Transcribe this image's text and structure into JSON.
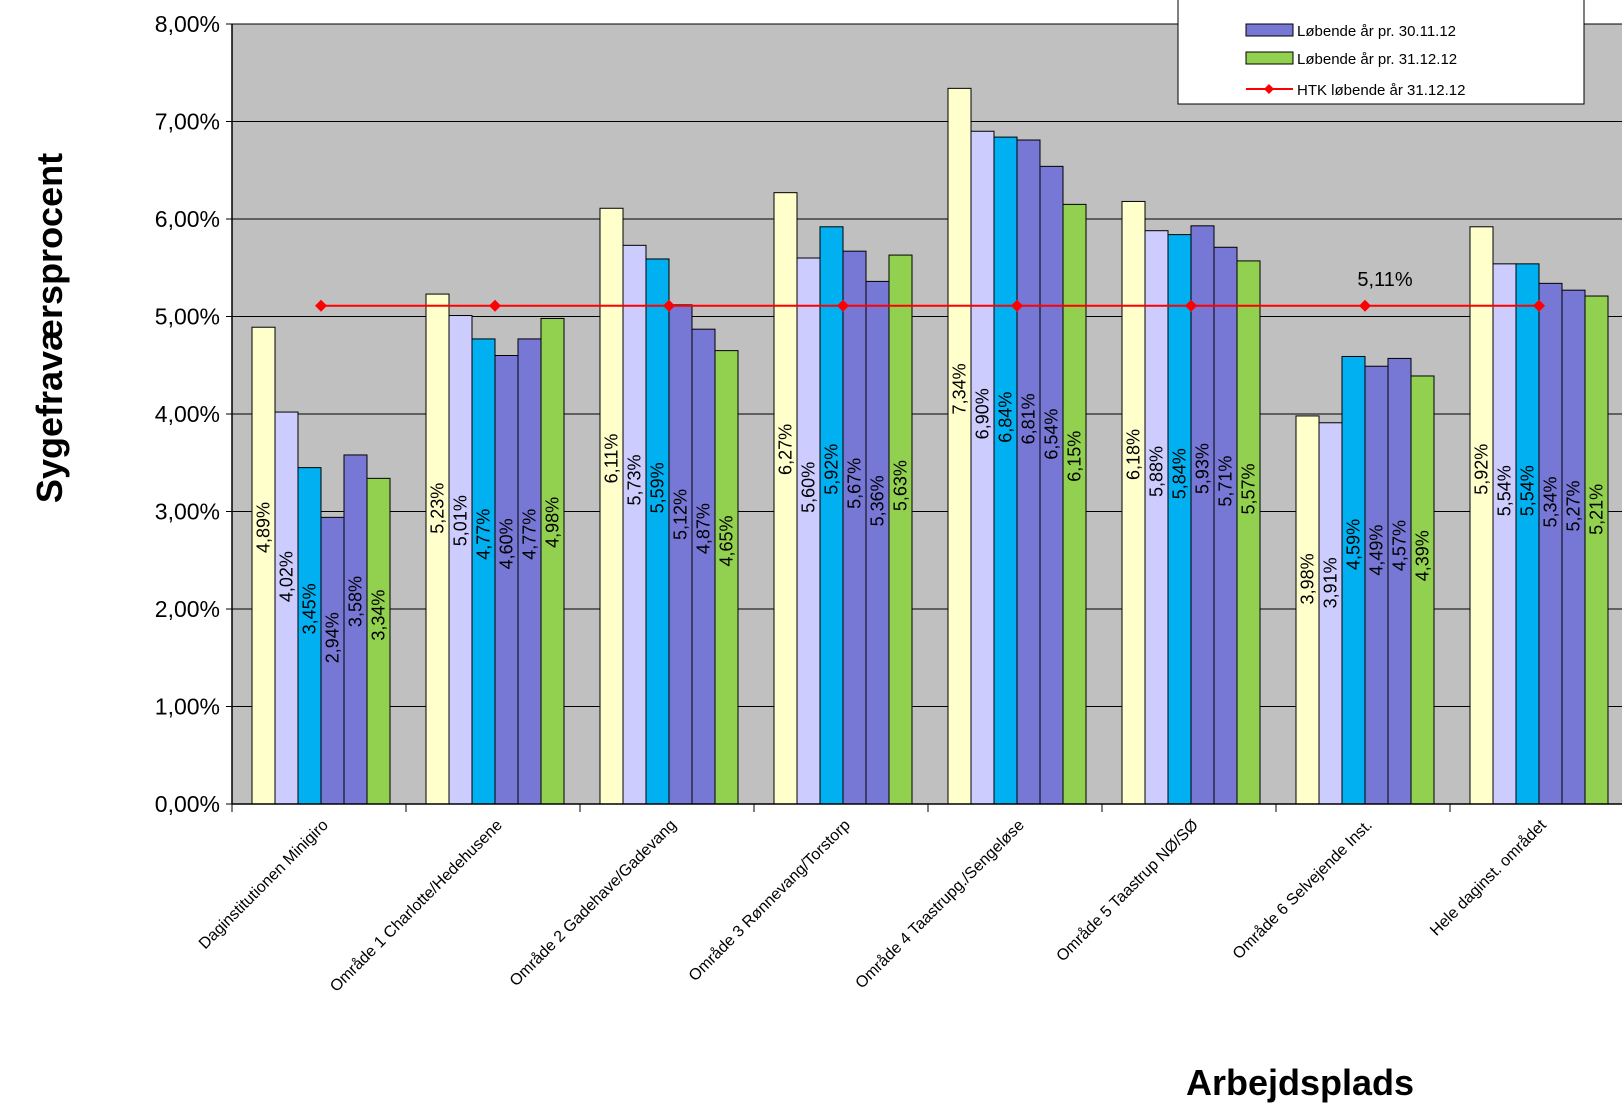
{
  "chart_data": {
    "type": "bar",
    "ylabel": "Sygefraværsprocent",
    "xlabel": "Arbejdsplads",
    "ylim": [
      0,
      8
    ],
    "ytick_labels": [
      "0,00%",
      "1,00%",
      "2,00%",
      "3,00%",
      "4,00%",
      "5,00%",
      "6,00%",
      "7,00%",
      "8,00%"
    ],
    "grid": true,
    "legend_position": "top-right",
    "categories": [
      "Daginstitutionen Minigiro",
      "Område 1 Charlotte/Hedehusene",
      "Område 2 Gadehave/Gadevang",
      "Område 3 Rønnevang/Torstorp",
      "Område 4 Taastrupg./Sengeløse",
      "Område 5 Taastrup NØ/SØ",
      "Område 6 Selvejende Inst.",
      "Hele daginst. området"
    ],
    "series": [
      {
        "color": "#ffffcc",
        "values": [
          4.89,
          5.23,
          6.11,
          6.27,
          7.34,
          6.18,
          3.98,
          5.92
        ],
        "labels": [
          "4,89%",
          "5,23%",
          "6,11%",
          "6,27%",
          "7,34%",
          "6,18%",
          "3,98%",
          "5,92%"
        ]
      },
      {
        "color": "#ccccff",
        "values": [
          4.02,
          5.01,
          5.73,
          5.6,
          6.9,
          5.88,
          3.91,
          5.54
        ],
        "labels": [
          "4,02%",
          "5,01%",
          "5,73%",
          "5,60%",
          "6,90%",
          "5,88%",
          "3,91%",
          "5,54%"
        ]
      },
      {
        "color": "#00b0f0",
        "values": [
          3.45,
          4.77,
          5.59,
          5.92,
          6.84,
          5.84,
          4.59,
          5.54
        ],
        "labels": [
          "3,45%",
          "4,77%",
          "5,59%",
          "5,92%",
          "6,84%",
          "5,84%",
          "4,59%",
          "5,54%"
        ]
      },
      {
        "color": "#7777d6",
        "values": [
          2.94,
          4.6,
          5.12,
          5.67,
          6.81,
          5.93,
          4.49,
          5.34
        ],
        "labels": [
          "2,94%",
          "4,60%",
          "5,12%",
          "5,67%",
          "6,81%",
          "5,93%",
          "4,49%",
          "5,34%"
        ]
      },
      {
        "name": "Løbende år pr. 30.11.12",
        "color": "#7777d6",
        "values": [
          3.58,
          4.77,
          4.87,
          5.36,
          6.54,
          5.71,
          4.57,
          5.27
        ],
        "labels": [
          "3,58%",
          "4,77%",
          "4,87%",
          "5,36%",
          "6,54%",
          "5,71%",
          "4,57%",
          "5,27%"
        ]
      },
      {
        "name": "Løbende år pr. 31.12.12",
        "color": "#92d050",
        "values": [
          3.34,
          4.98,
          4.65,
          5.63,
          6.15,
          5.57,
          4.39,
          5.21
        ],
        "labels": [
          "3,34%",
          "4,98%",
          "4,65%",
          "5,63%",
          "6,15%",
          "5,57%",
          "4,39%",
          "5,21%"
        ]
      }
    ],
    "line": {
      "name": "HTK løbende år 31.12.12",
      "color": "#ff0000",
      "value": 5.11,
      "label": "5,11%"
    },
    "legend_entries": [
      {
        "text": "Løbende år pr. 30.11.12",
        "kind": "bar",
        "color": "#7777d6"
      },
      {
        "text": "Løbende år pr. 31.12.12",
        "kind": "bar",
        "color": "#92d050"
      },
      {
        "text": "HTK løbende år 31.12.12",
        "kind": "line",
        "color": "#ff0000"
      }
    ],
    "plot_background": "#c0c0c0"
  }
}
